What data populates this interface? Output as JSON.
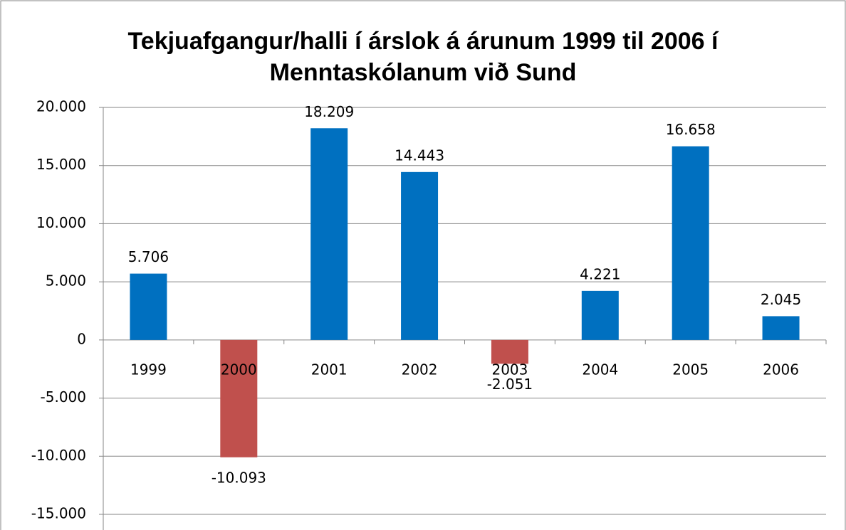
{
  "chart_data": {
    "type": "bar",
    "title": "Tekjuafgangur/halli í árslok á árunum 1999 til 2006 í Menntaskólanum við Sund",
    "categories": [
      "1999",
      "2000",
      "2001",
      "2002",
      "2003",
      "2004",
      "2005",
      "2006"
    ],
    "values": [
      5706,
      -10093,
      18209,
      14443,
      -2051,
      4221,
      16658,
      2045
    ],
    "value_labels": [
      "5.706",
      "-10.093",
      "18.209",
      "14.443",
      "-2.051",
      "4.221",
      "16.658",
      "2.045"
    ],
    "color": "#0070c0",
    "negative_color": "#c0504d",
    "ylim": [
      -15000,
      20000
    ],
    "yticks": [
      {
        "value": -15000,
        "label": "-15.000"
      },
      {
        "value": -10000,
        "label": "-10.000"
      },
      {
        "value": -5000,
        "label": "-5.000"
      },
      0,
      {
        "value": 5000,
        "label": "5.000"
      },
      {
        "value": 10000,
        "label": "10.000"
      },
      {
        "value": 15000,
        "label": "15.000"
      },
      {
        "value": 20000,
        "label": "20.000"
      }
    ],
    "grid": true
  }
}
